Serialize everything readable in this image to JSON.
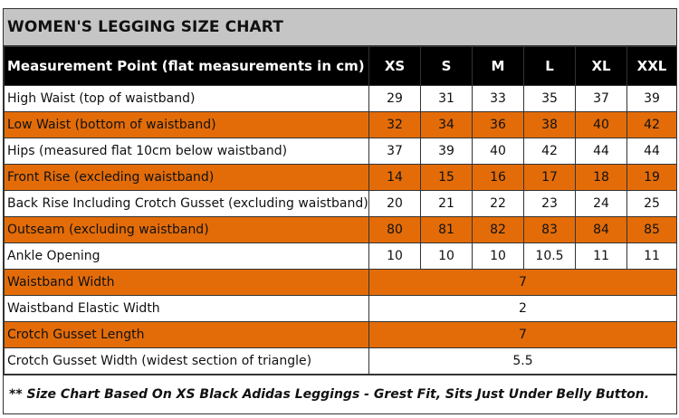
{
  "title": "WOMEN'S LEGGING SIZE CHART",
  "header": {
    "measurement_label": "Measurement Point (flat measurements in cm)",
    "sizes": [
      "XS",
      "S",
      "M",
      "L",
      "XL",
      "XXL"
    ]
  },
  "rows": [
    {
      "label": "High Waist (top of waistband)",
      "values": [
        "29",
        "31",
        "33",
        "35",
        "37",
        "39"
      ],
      "highlight": false
    },
    {
      "label": "Low Waist (bottom of waistband)",
      "values": [
        "32",
        "34",
        "36",
        "38",
        "40",
        "42"
      ],
      "highlight": true
    },
    {
      "label": "Hips (measured flat 10cm below waistband)",
      "values": [
        "37",
        "39",
        "40",
        "42",
        "44",
        "44"
      ],
      "highlight": false
    },
    {
      "label": "Front Rise (excleding waistband)",
      "values": [
        "14",
        "15",
        "16",
        "17",
        "18",
        "19"
      ],
      "highlight": true
    },
    {
      "label": "Back Rise Including Crotch Gusset (excluding waistband)",
      "values": [
        "20",
        "21",
        "22",
        "23",
        "24",
        "25"
      ],
      "highlight": false
    },
    {
      "label": "Outseam (excluding waistband)",
      "values": [
        "80",
        "81",
        "82",
        "83",
        "84",
        "85"
      ],
      "highlight": true
    },
    {
      "label": "Ankle Opening",
      "values": [
        "10",
        "10",
        "10",
        "10.5",
        "11",
        "11"
      ],
      "highlight": false
    },
    {
      "label": "Waistband Width",
      "value": "7",
      "highlight": true
    },
    {
      "label": "Waistband Elastic Width",
      "value": "2",
      "highlight": false
    },
    {
      "label": "Crotch Gusset Length",
      "value": "7",
      "highlight": true
    },
    {
      "label": "Crotch Gusset Width (widest section of triangle)",
      "value": "5.5",
      "highlight": false
    }
  ],
  "footer_note": "** Size Chart Based On XS Black Adidas Leggings - Grest Fit, Sits Just Under Belly Button.",
  "colors": {
    "highlight": "#e36c09",
    "header_bg": "#000000",
    "title_bg": "#c5c5c5"
  }
}
